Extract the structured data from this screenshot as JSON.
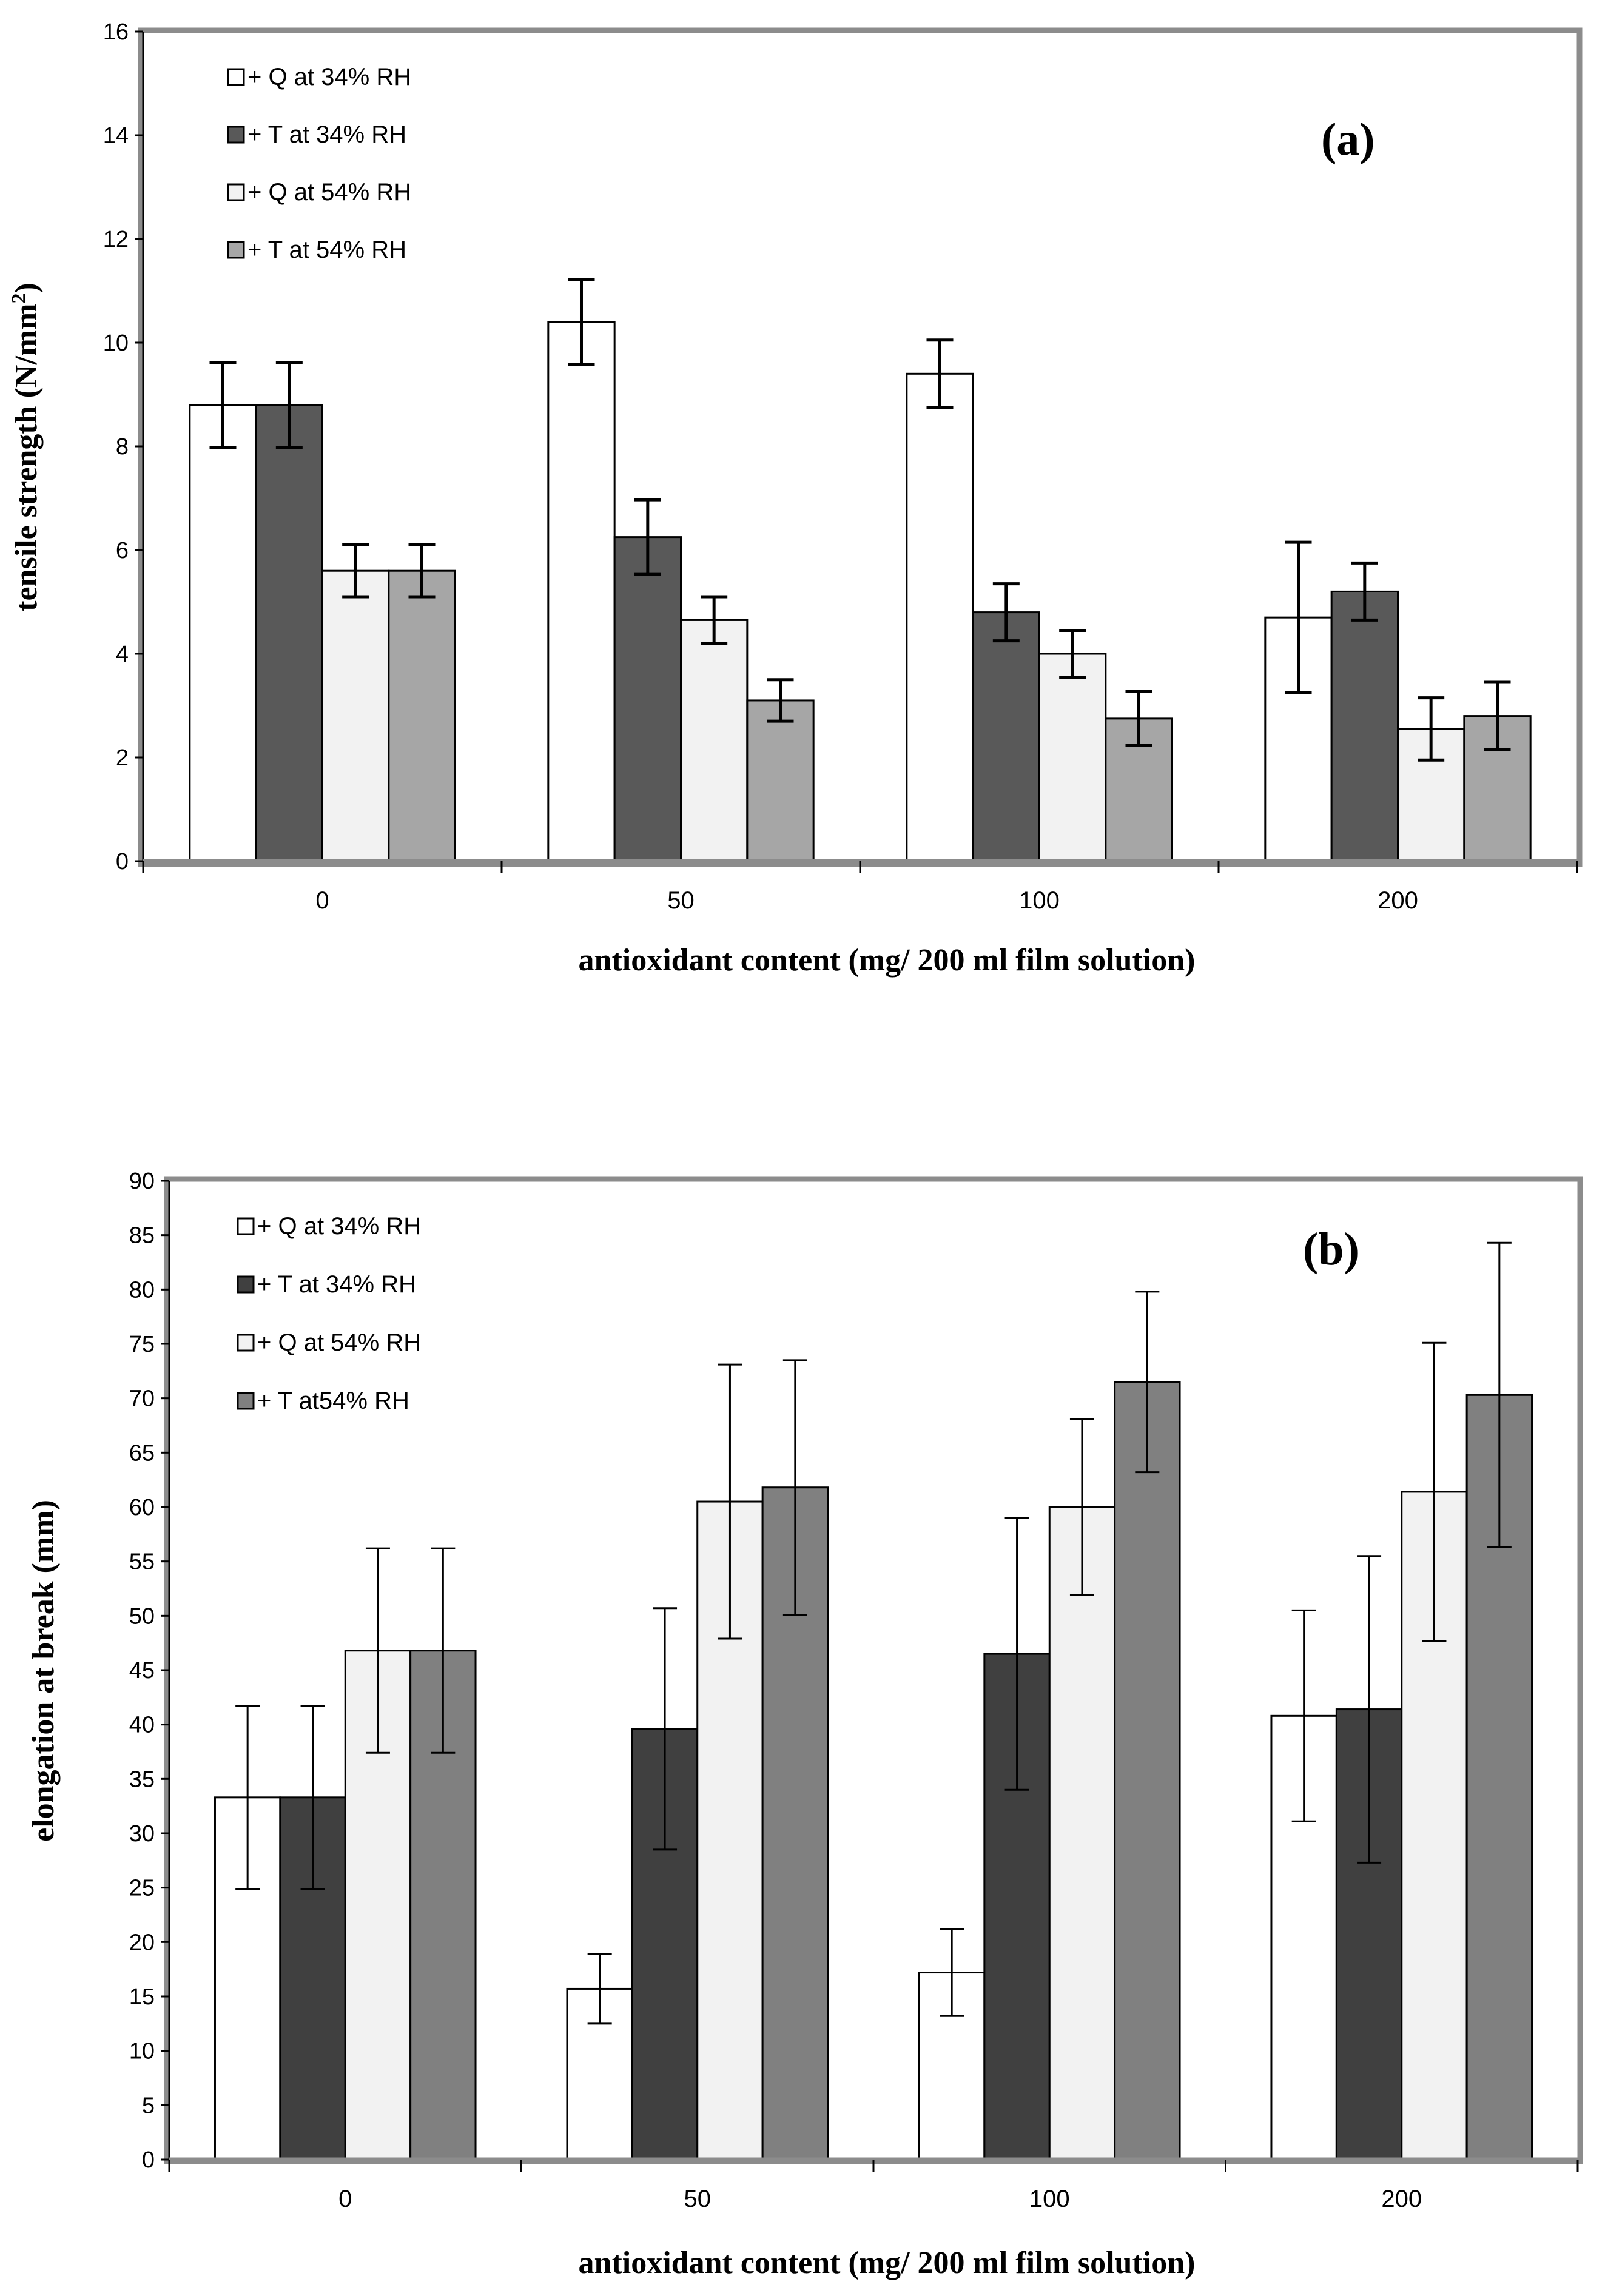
{
  "chart_data": [
    {
      "type": "bar",
      "panel_label": "(a)",
      "xlabel": "antioxidant content (mg/ 200 ml film solution)",
      "ylabel": "tensile strength (N/mm",
      "ylabel_sup": "2",
      "ylabel_close": ")",
      "ylim": [
        0,
        16
      ],
      "yticks": [
        "0",
        "2",
        "4",
        "6",
        "8",
        "10",
        "12",
        "14",
        "16"
      ],
      "categories": [
        "0",
        "50",
        "100",
        "200"
      ],
      "legend_position": "top-left",
      "series": [
        {
          "name": "+ Q at 34% RH",
          "color": "#ffffff",
          "values": [
            8.8,
            10.4,
            9.4,
            4.7
          ],
          "errors": [
            0.82,
            0.82,
            0.65,
            1.45
          ]
        },
        {
          "name": "+ T at 34% RH",
          "color": "#595959",
          "values": [
            8.8,
            6.25,
            4.8,
            5.2
          ],
          "errors": [
            0.82,
            0.72,
            0.55,
            0.55
          ]
        },
        {
          "name": "+ Q at 54% RH",
          "color": "#f2f2f2",
          "values": [
            5.6,
            4.65,
            4.0,
            2.55
          ],
          "errors": [
            0.5,
            0.45,
            0.45,
            0.6
          ]
        },
        {
          "name": "+ T at 54% RH",
          "color": "#a6a6a6",
          "values": [
            5.6,
            3.1,
            2.75,
            2.8
          ],
          "errors": [
            0.5,
            0.4,
            0.52,
            0.65
          ]
        }
      ]
    },
    {
      "type": "bar",
      "panel_label": "(b)",
      "xlabel": "antioxidant content (mg/ 200 ml film solution)",
      "ylabel": "elongation at break (mm)",
      "ylim": [
        0,
        90
      ],
      "yticks": [
        "0",
        "5",
        "10",
        "15",
        "20",
        "25",
        "30",
        "35",
        "40",
        "45",
        "50",
        "55",
        "60",
        "65",
        "70",
        "75",
        "80",
        "85",
        "90"
      ],
      "categories": [
        "0",
        "50",
        "100",
        "200"
      ],
      "legend_position": "top-left",
      "series": [
        {
          "name": "+ Q at 34% RH",
          "color": "#ffffff",
          "values": [
            33.3,
            15.7,
            17.2,
            40.8
          ],
          "errors": [
            8.4,
            3.2,
            4.0,
            9.7
          ]
        },
        {
          "name": "+ T at 34% RH",
          "color": "#404040",
          "values": [
            33.3,
            39.6,
            46.5,
            41.4
          ],
          "errors": [
            8.4,
            11.1,
            12.5,
            14.1
          ]
        },
        {
          "name": "+ Q at 54% RH",
          "color": "#f2f2f2",
          "values": [
            46.8,
            60.5,
            60.0,
            61.4
          ],
          "errors": [
            9.4,
            12.6,
            8.1,
            13.7
          ]
        },
        {
          "name": "+ T at54% RH",
          "color": "#808080",
          "values": [
            46.8,
            61.8,
            71.5,
            70.3
          ],
          "errors": [
            9.4,
            11.7,
            8.3,
            14.0
          ]
        }
      ]
    }
  ]
}
